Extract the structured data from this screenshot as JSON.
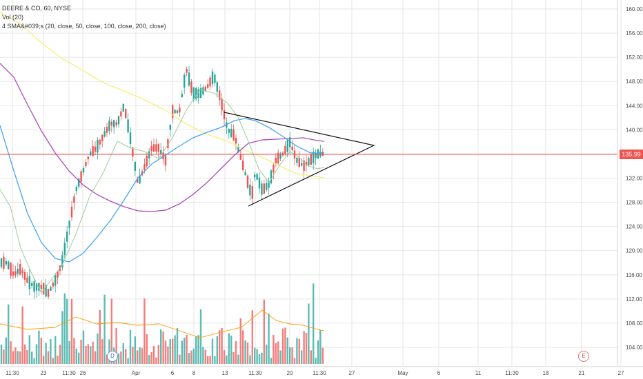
{
  "chart_data": {
    "type": "candlestick",
    "title": "DEERE & CO, 60, NYSE",
    "ylim": [
      102,
      161
    ],
    "y_ticks": [
      "160.00",
      "156.00",
      "152.00",
      "148.00",
      "144.00",
      "140.00",
      "136.00",
      "132.00",
      "128.00",
      "124.00",
      "120.00",
      "116.00",
      "112.00",
      "108.00",
      "104.00"
    ],
    "x_ticks": [
      "11:30",
      "23",
      "11:30",
      "26",
      "Apr",
      "6",
      "8",
      "13",
      "11:30",
      "20",
      "11:30",
      "27",
      "May",
      "6",
      "11",
      "11:30",
      "18",
      "21",
      "27"
    ],
    "current_price": "135.99",
    "legend": [
      "DEERE & CO, 60, NYSE",
      "Vol (20)",
      "4 SMA&#039;s (20, close, 50, close, 100, close, 200, close)"
    ],
    "markers": [
      "D",
      "E"
    ],
    "colors": {
      "up": "#26a69a",
      "down": "#ef5350",
      "sma20": "#9ccc9c",
      "sma50": "#42a5f5",
      "sma100": "#ab47bc",
      "sma200": "#f5ef7a",
      "price_line": "#ef5350",
      "grid": "#e6e6e6",
      "axis_text": "#4a4a4a"
    },
    "sma50_path": [
      [
        0,
        182
      ],
      [
        20,
        248
      ],
      [
        40,
        310
      ],
      [
        60,
        352
      ],
      [
        80,
        375
      ],
      [
        100,
        380
      ],
      [
        120,
        368
      ],
      [
        140,
        345
      ],
      [
        160,
        320
      ],
      [
        180,
        290
      ],
      [
        200,
        258
      ],
      [
        220,
        238
      ],
      [
        240,
        225
      ],
      [
        260,
        212
      ],
      [
        280,
        200
      ],
      [
        300,
        192
      ],
      [
        320,
        185
      ],
      [
        340,
        175
      ],
      [
        355,
        172
      ],
      [
        370,
        175
      ],
      [
        390,
        185
      ],
      [
        410,
        198
      ],
      [
        430,
        212
      ],
      [
        450,
        222
      ],
      [
        470,
        222
      ]
    ],
    "sma100_path": [
      [
        0,
        92
      ],
      [
        20,
        112
      ],
      [
        40,
        152
      ],
      [
        60,
        190
      ],
      [
        80,
        222
      ],
      [
        100,
        248
      ],
      [
        120,
        268
      ],
      [
        140,
        282
      ],
      [
        160,
        292
      ],
      [
        180,
        300
      ],
      [
        200,
        306
      ],
      [
        220,
        307
      ],
      [
        240,
        305
      ],
      [
        260,
        296
      ],
      [
        280,
        282
      ],
      [
        300,
        265
      ],
      [
        320,
        245
      ],
      [
        340,
        225
      ],
      [
        360,
        208
      ],
      [
        380,
        203
      ],
      [
        400,
        202
      ],
      [
        420,
        201
      ],
      [
        440,
        200
      ],
      [
        460,
        204
      ],
      [
        470,
        205
      ]
    ],
    "sma200_path": [
      [
        0,
        18
      ],
      [
        30,
        35
      ],
      [
        60,
        62
      ],
      [
        90,
        85
      ],
      [
        120,
        102
      ],
      [
        150,
        120
      ],
      [
        180,
        132
      ],
      [
        210,
        145
      ],
      [
        240,
        160
      ],
      [
        270,
        180
      ],
      [
        300,
        195
      ],
      [
        330,
        205
      ],
      [
        360,
        220
      ],
      [
        390,
        233
      ],
      [
        410,
        243
      ],
      [
        430,
        252
      ],
      [
        450,
        255
      ],
      [
        470,
        258
      ]
    ],
    "sma20_path": [
      [
        0,
        275
      ],
      [
        15,
        300
      ],
      [
        30,
        360
      ],
      [
        45,
        395
      ],
      [
        60,
        425
      ],
      [
        75,
        405
      ],
      [
        90,
        385
      ],
      [
        110,
        340
      ],
      [
        130,
        285
      ],
      [
        150,
        250
      ],
      [
        170,
        205
      ],
      [
        190,
        215
      ],
      [
        210,
        220
      ],
      [
        230,
        230
      ],
      [
        250,
        200
      ],
      [
        270,
        160
      ],
      [
        290,
        130
      ],
      [
        310,
        135
      ],
      [
        330,
        150
      ],
      [
        345,
        170
      ],
      [
        360,
        205
      ],
      [
        375,
        245
      ],
      [
        390,
        265
      ],
      [
        405,
        240
      ],
      [
        420,
        220
      ],
      [
        430,
        225
      ],
      [
        445,
        240
      ],
      [
        460,
        245
      ],
      [
        470,
        243
      ]
    ],
    "triangle": [
      [
        325,
        163
      ],
      [
        542,
        211
      ],
      [
        360,
        299
      ]
    ],
    "volume_baseline": 528,
    "volume_top": 402,
    "volume_avg_path": [
      [
        0,
        470
      ],
      [
        40,
        478
      ],
      [
        80,
        475
      ],
      [
        110,
        460
      ],
      [
        140,
        470
      ],
      [
        170,
        468
      ],
      [
        200,
        472
      ],
      [
        230,
        470
      ],
      [
        260,
        480
      ],
      [
        290,
        490
      ],
      [
        320,
        482
      ],
      [
        350,
        475
      ],
      [
        380,
        450
      ],
      [
        400,
        465
      ],
      [
        420,
        470
      ],
      [
        440,
        472
      ],
      [
        460,
        478
      ],
      [
        470,
        480
      ]
    ]
  }
}
